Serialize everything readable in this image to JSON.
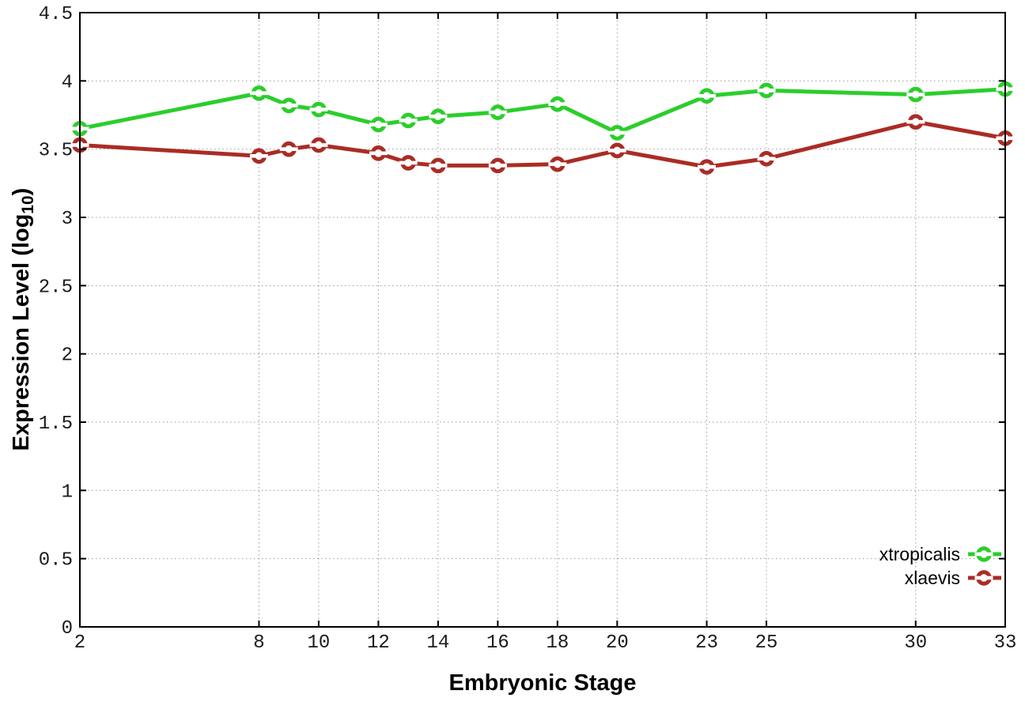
{
  "chart_data": {
    "type": "line",
    "title": "",
    "xlabel": "Embryonic Stage",
    "ylabel": "Expression Level (log10)",
    "ylabel_parts": {
      "prefix": "Expression Level (log",
      "sub": "10",
      "suffix": ")"
    },
    "xlim": [
      2,
      33
    ],
    "ylim": [
      0,
      4.5
    ],
    "x": [
      2,
      8,
      9,
      10,
      12,
      13,
      14,
      16,
      18,
      20,
      23,
      25,
      30,
      33
    ],
    "xticks": [
      2,
      8,
      10,
      12,
      14,
      16,
      18,
      20,
      23,
      25,
      30,
      33
    ],
    "xtick_labels": [
      "2",
      "8",
      "10",
      "12",
      "14",
      "16",
      "18",
      "20",
      "23",
      "25",
      "30",
      "33"
    ],
    "yticks": [
      0,
      0.5,
      1,
      1.5,
      2,
      2.5,
      3,
      3.5,
      4,
      4.5
    ],
    "ytick_labels": [
      "0",
      "0.5",
      "1",
      "1.5",
      "2",
      "2.5",
      "3",
      "3.5",
      "4",
      "4.5"
    ],
    "grid": true,
    "legend_position": "inside-bottom-right",
    "marker": "open-circle-with-horizontal-slit",
    "series": [
      {
        "name": "xtropicalis",
        "color": "#2bce2b",
        "values": [
          3.65,
          3.91,
          3.82,
          3.79,
          3.68,
          3.71,
          3.74,
          3.77,
          3.83,
          3.62,
          3.89,
          3.93,
          3.9,
          3.94
        ]
      },
      {
        "name": "xlaevis",
        "color": "#aa2c25",
        "values": [
          3.53,
          3.45,
          3.5,
          3.53,
          3.47,
          3.4,
          3.38,
          3.38,
          3.39,
          3.49,
          3.37,
          3.43,
          3.7,
          3.58
        ]
      }
    ],
    "colors": {
      "axis": "#000000",
      "tick_text": "#1a1a1a",
      "gridline": "#9a9a9a",
      "background": "#ffffff"
    }
  }
}
